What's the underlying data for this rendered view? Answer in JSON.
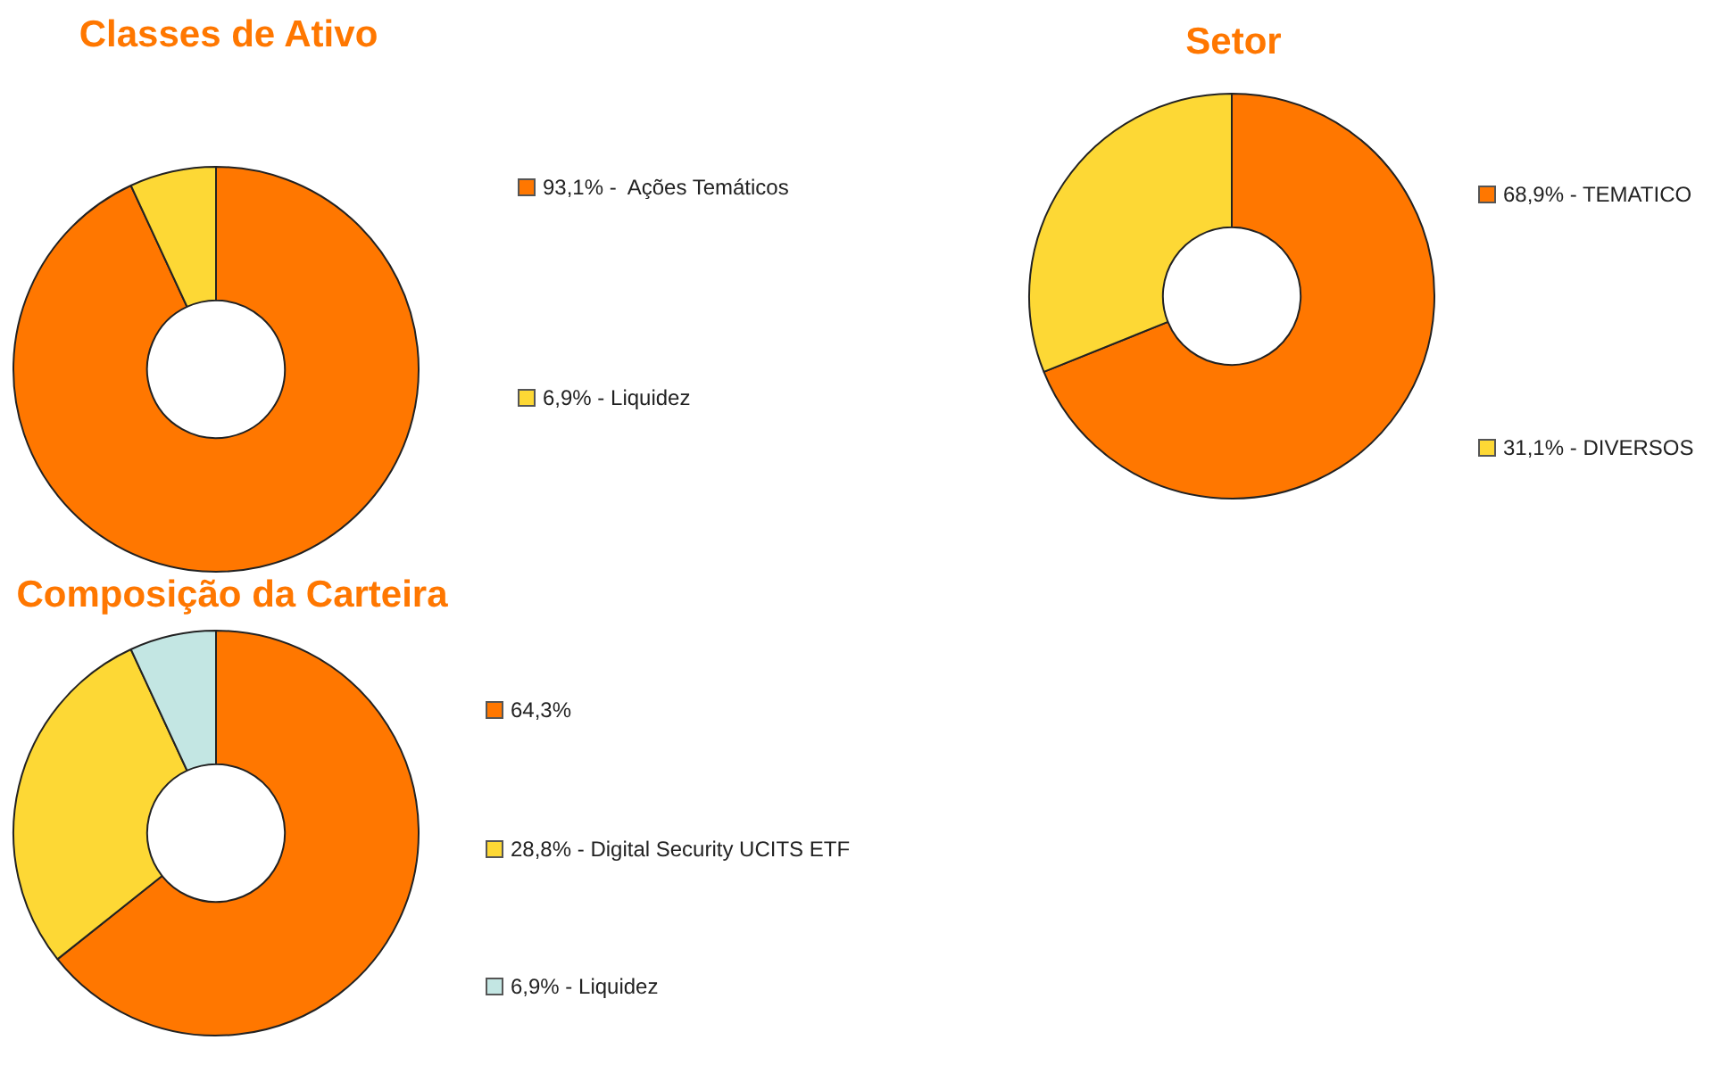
{
  "chart_data": [
    {
      "type": "donut",
      "title": "Classes de Ativo",
      "categories": [
        "93,1% -  Ações Temáticos",
        "6,9% - Liquidez"
      ],
      "values": [
        93.1,
        6.9
      ],
      "colors": [
        "#ff7700",
        "#fdd835"
      ],
      "legend": "right"
    },
    {
      "type": "donut",
      "title": "Setor",
      "categories": [
        "68,9% - TEMATICO",
        "31,1% - DIVERSOS"
      ],
      "values": [
        68.9,
        31.1
      ],
      "colors": [
        "#ff7700",
        "#fdd835"
      ],
      "legend": "right"
    },
    {
      "type": "donut",
      "title": "Composição da Carteira",
      "categories": [
        "64,3%",
        "28,8% - Digital Security UCITS ETF",
        "6,9% - Liquidez"
      ],
      "values": [
        64.3,
        28.8,
        6.9
      ],
      "colors": [
        "#ff7700",
        "#fdd835",
        "#c3e6e3"
      ],
      "legend": "right"
    }
  ]
}
